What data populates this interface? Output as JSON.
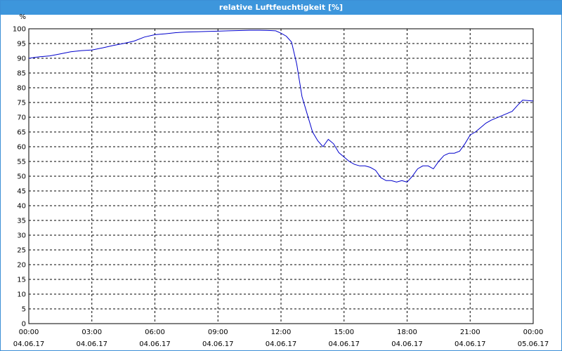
{
  "window": {
    "title": "relative Luftfeuchtigkeit [%]"
  },
  "colors": {
    "titlebar": "#3d96dc",
    "line": "#0000cc",
    "grid": "#000000"
  },
  "chart_data": {
    "type": "line",
    "title": "relative Luftfeuchtigkeit [%]",
    "ylabel": "%",
    "xlabel": "",
    "ylim": [
      0,
      100
    ],
    "xlim": [
      "04.06.17 00:00",
      "05.06.17 00:00"
    ],
    "grid": true,
    "legend": "none",
    "y_ticks": [
      "0",
      "5",
      "10",
      "15",
      "20",
      "25",
      "30",
      "35",
      "40",
      "45",
      "50",
      "55",
      "60",
      "65",
      "70",
      "75",
      "80",
      "85",
      "90",
      "95",
      "100"
    ],
    "x_ticks": [
      {
        "time": "00:00",
        "date": "04.06.17"
      },
      {
        "time": "03:00",
        "date": "04.06.17"
      },
      {
        "time": "06:00",
        "date": "04.06.17"
      },
      {
        "time": "09:00",
        "date": "04.06.17"
      },
      {
        "time": "12:00",
        "date": "04.06.17"
      },
      {
        "time": "15:00",
        "date": "04.06.17"
      },
      {
        "time": "18:00",
        "date": "04.06.17"
      },
      {
        "time": "21:00",
        "date": "04.06.17"
      },
      {
        "time": "00:00",
        "date": "05.06.17"
      }
    ],
    "series": [
      {
        "x": [
          "00:00",
          "00:30",
          "01:00",
          "01:30",
          "02:00",
          "02:30",
          "03:00",
          "03:30",
          "04:00",
          "04:30",
          "05:00",
          "05:30",
          "06:00",
          "06:30",
          "07:00",
          "07:30",
          "08:00",
          "08:30",
          "09:00",
          "09:30",
          "10:00",
          "10:30",
          "11:00",
          "11:30",
          "11:45",
          "12:00",
          "12:15",
          "12:30",
          "12:45",
          "13:00",
          "13:15",
          "13:30",
          "13:45",
          "14:00",
          "14:15",
          "14:30",
          "14:45",
          "15:00",
          "15:15",
          "15:30",
          "15:45",
          "16:00",
          "16:15",
          "16:30",
          "16:45",
          "17:00",
          "17:15",
          "17:30",
          "17:45",
          "18:00",
          "18:15",
          "18:30",
          "18:45",
          "19:00",
          "19:15",
          "19:30",
          "19:45",
          "20:00",
          "20:15",
          "20:30",
          "20:45",
          "21:00",
          "21:15",
          "21:30",
          "21:45",
          "22:00",
          "22:30",
          "23:00",
          "23:15",
          "23:30",
          "24:00"
        ],
        "values": [
          90,
          90.5,
          90.8,
          91.5,
          92.2,
          92.6,
          92.8,
          93.5,
          94.3,
          95,
          95.8,
          97.2,
          98,
          98.3,
          98.7,
          98.9,
          99,
          99.1,
          99.2,
          99.3,
          99.4,
          99.5,
          99.5,
          99.4,
          99.3,
          98.5,
          97.5,
          95.5,
          88,
          77,
          71,
          65,
          62,
          60,
          62.5,
          61,
          58,
          56.5,
          55,
          54,
          53.5,
          53.5,
          53,
          52,
          49.5,
          48.5,
          48.5,
          48,
          48.5,
          48,
          50,
          52.5,
          53.5,
          53.5,
          52.5,
          55,
          57,
          57.8,
          57.8,
          58.5,
          61,
          64,
          65,
          66.5,
          68,
          69,
          70.5,
          72,
          74,
          75.8,
          75.5
        ]
      }
    ]
  }
}
